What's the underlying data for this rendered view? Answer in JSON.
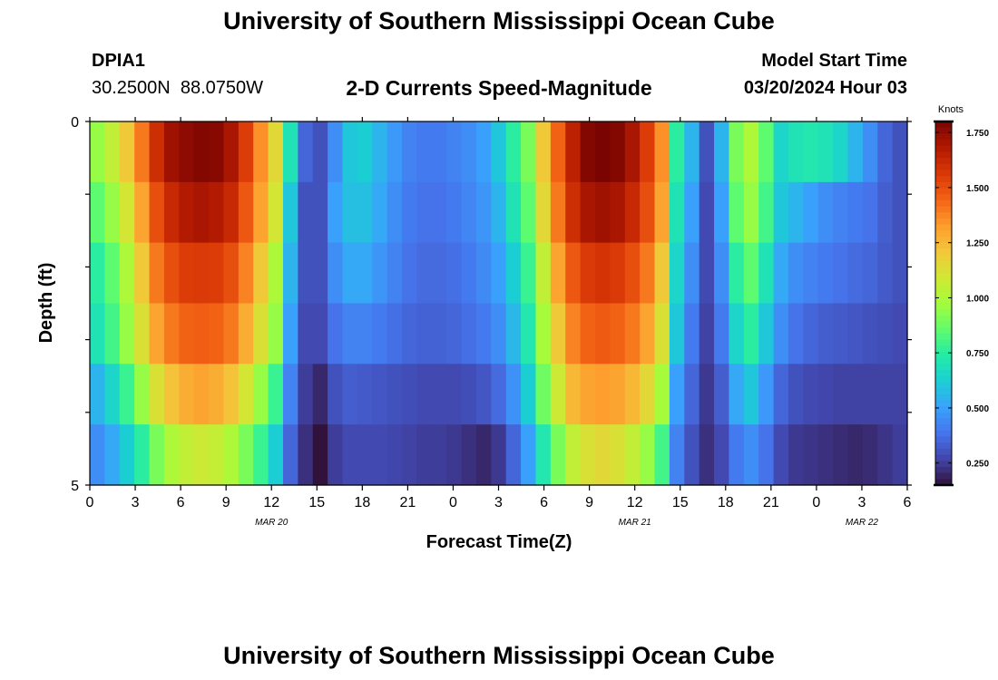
{
  "header": {
    "title": "University of Southern Mississippi Ocean Cube",
    "station_id": "DPIA1",
    "coordinates": "30.2500N  88.0750W",
    "chart_title": "2-D Currents Speed-Magnitude",
    "model_start_label": "Model Start Time",
    "model_start_value": "03/20/2024 Hour 03"
  },
  "footer": {
    "title": "University of Southern Mississippi Ocean Cube"
  },
  "chart_data": {
    "type": "heatmap",
    "title": "2-D Currents Speed-Magnitude",
    "xlabel": "Forecast Time(Z)",
    "ylabel": "Depth (ft)",
    "x_tick_labels": [
      "0",
      "3",
      "6",
      "9",
      "12",
      "15",
      "18",
      "21",
      "0",
      "3",
      "6",
      "9",
      "12",
      "15",
      "18",
      "21",
      "0",
      "3",
      "6"
    ],
    "date_labels": [
      {
        "label": "MAR 20",
        "at_tick": 4
      },
      {
        "label": "MAR 21",
        "at_tick": 12
      },
      {
        "label": "MAR 22",
        "at_tick": 17
      }
    ],
    "y_tick_labels": [
      "0",
      "5"
    ],
    "ylim": [
      0,
      5
    ],
    "x_hours_range": [
      0,
      54
    ],
    "depth_levels_ft": [
      0,
      1,
      2,
      3,
      4,
      5
    ],
    "colorbar": {
      "unit": "Knots",
      "ticks": [
        "1.750",
        "1.500",
        "1.250",
        "1.000",
        "0.750",
        "0.500",
        "0.250"
      ],
      "min": 0.15,
      "max": 1.8,
      "colors": [
        "#30123b",
        "#4145ab",
        "#4675ed",
        "#39a2fc",
        "#1bcfd4",
        "#24eca6",
        "#61fc6c",
        "#a4fc3b",
        "#d1e834",
        "#f3c63a",
        "#fe9b2d",
        "#f36315",
        "#d93806",
        "#b11901",
        "#7a0402"
      ]
    },
    "values_knots_by_depth_layer": [
      [
        0.95,
        1.05,
        1.2,
        1.4,
        1.6,
        1.72,
        1.76,
        1.78,
        1.77,
        1.7,
        1.55,
        1.35,
        1.15,
        0.7,
        0.35,
        0.3,
        0.45,
        0.6,
        0.62,
        0.55,
        0.48,
        0.42,
        0.4,
        0.4,
        0.42,
        0.45,
        0.5,
        0.6,
        0.75,
        0.9,
        1.2,
        1.45,
        1.65,
        1.78,
        1.8,
        1.78,
        1.7,
        1.55,
        1.35,
        0.75,
        0.55,
        0.3,
        0.55,
        0.9,
        1.0,
        0.85,
        0.65,
        0.7,
        0.72,
        0.7,
        0.65,
        0.55,
        0.45,
        0.35,
        0.3
      ],
      [
        0.85,
        0.95,
        1.1,
        1.3,
        1.5,
        1.62,
        1.68,
        1.7,
        1.68,
        1.62,
        1.48,
        1.3,
        1.1,
        0.6,
        0.3,
        0.3,
        0.5,
        0.58,
        0.58,
        0.52,
        0.45,
        0.4,
        0.38,
        0.38,
        0.4,
        0.43,
        0.47,
        0.55,
        0.7,
        0.85,
        1.15,
        1.4,
        1.6,
        1.7,
        1.72,
        1.7,
        1.62,
        1.5,
        1.3,
        0.7,
        0.5,
        0.28,
        0.5,
        0.85,
        0.95,
        0.8,
        0.6,
        0.55,
        0.5,
        0.45,
        0.42,
        0.4,
        0.38,
        0.33,
        0.3
      ],
      [
        0.75,
        0.85,
        1.0,
        1.2,
        1.4,
        1.5,
        1.55,
        1.56,
        1.55,
        1.5,
        1.38,
        1.2,
        1.0,
        0.55,
        0.3,
        0.3,
        0.45,
        0.52,
        0.52,
        0.47,
        0.42,
        0.38,
        0.36,
        0.36,
        0.37,
        0.4,
        0.44,
        0.5,
        0.62,
        0.78,
        1.05,
        1.3,
        1.48,
        1.56,
        1.58,
        1.56,
        1.5,
        1.4,
        1.2,
        0.65,
        0.45,
        0.28,
        0.45,
        0.75,
        0.85,
        0.7,
        0.52,
        0.45,
        0.42,
        0.4,
        0.38,
        0.36,
        0.35,
        0.32,
        0.3
      ],
      [
        0.7,
        0.8,
        0.95,
        1.12,
        1.3,
        1.4,
        1.45,
        1.46,
        1.45,
        1.4,
        1.28,
        1.12,
        0.95,
        0.5,
        0.28,
        0.28,
        0.38,
        0.42,
        0.42,
        0.4,
        0.37,
        0.35,
        0.34,
        0.34,
        0.35,
        0.37,
        0.4,
        0.45,
        0.56,
        0.72,
        0.98,
        1.2,
        1.38,
        1.45,
        1.47,
        1.45,
        1.4,
        1.3,
        1.12,
        0.6,
        0.4,
        0.26,
        0.4,
        0.65,
        0.75,
        0.6,
        0.45,
        0.38,
        0.35,
        0.33,
        0.32,
        0.31,
        0.3,
        0.29,
        0.28
      ],
      [
        0.55,
        0.65,
        0.78,
        0.95,
        1.12,
        1.22,
        1.28,
        1.3,
        1.28,
        1.22,
        1.1,
        0.95,
        0.78,
        0.42,
        0.25,
        0.2,
        0.3,
        0.33,
        0.32,
        0.31,
        0.3,
        0.29,
        0.28,
        0.28,
        0.28,
        0.29,
        0.31,
        0.36,
        0.46,
        0.62,
        0.88,
        1.08,
        1.25,
        1.3,
        1.32,
        1.3,
        1.25,
        1.15,
        0.98,
        0.5,
        0.35,
        0.24,
        0.33,
        0.52,
        0.6,
        0.48,
        0.35,
        0.3,
        0.28,
        0.27,
        0.26,
        0.26,
        0.26,
        0.26,
        0.26
      ],
      [
        0.45,
        0.52,
        0.62,
        0.75,
        0.9,
        1.0,
        1.05,
        1.08,
        1.06,
        1.0,
        0.9,
        0.78,
        0.62,
        0.35,
        0.22,
        0.15,
        0.25,
        0.28,
        0.28,
        0.28,
        0.27,
        0.26,
        0.25,
        0.25,
        0.24,
        0.22,
        0.2,
        0.24,
        0.35,
        0.5,
        0.72,
        0.9,
        1.05,
        1.12,
        1.15,
        1.12,
        1.05,
        0.95,
        0.8,
        0.42,
        0.3,
        0.22,
        0.28,
        0.4,
        0.45,
        0.38,
        0.28,
        0.24,
        0.23,
        0.22,
        0.21,
        0.2,
        0.21,
        0.23,
        0.25
      ]
    ]
  }
}
